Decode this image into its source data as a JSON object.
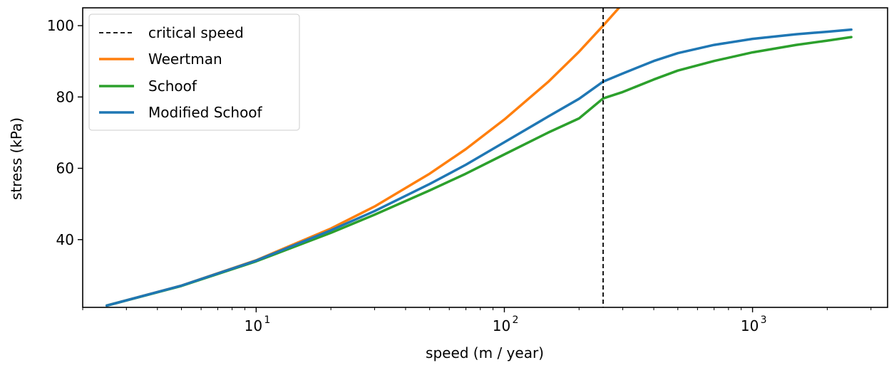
{
  "chart_data": {
    "type": "line",
    "title": "",
    "xlabel": "speed (m / year)",
    "ylabel": "stress (kPa)",
    "x_scale": "log",
    "xlim": [
      2,
      3500
    ],
    "ylim": [
      21,
      105
    ],
    "x_ticks": [
      {
        "value": 10,
        "base": "10",
        "exp": "1"
      },
      {
        "value": 100,
        "base": "10",
        "exp": "2"
      },
      {
        "value": 1000,
        "base": "10",
        "exp": "3"
      }
    ],
    "y_ticks": [
      {
        "value": 40,
        "label": "40"
      },
      {
        "value": 60,
        "label": "60"
      },
      {
        "value": 80,
        "label": "80"
      },
      {
        "value": 100,
        "label": "100"
      }
    ],
    "grid": false,
    "legend_position": "upper left",
    "critical_speed": {
      "name": "critical speed",
      "x": 250,
      "color": "#000000",
      "style": "dashed"
    },
    "series": [
      {
        "name": "Weertman",
        "color": "#ff7f0e",
        "x": [
          2.5,
          5,
          10,
          20,
          30,
          50,
          70,
          100,
          150,
          200,
          250,
          300
        ],
        "y": [
          21.5,
          27.1,
          34.2,
          43.1,
          49.3,
          58.5,
          65.4,
          73.7,
          84.2,
          92.7,
          100.0,
          106.2
        ]
      },
      {
        "name": "Schoof",
        "color": "#2ca02c",
        "x": [
          2.5,
          5,
          10,
          20,
          30,
          50,
          70,
          100,
          150,
          200,
          250,
          300,
          400,
          500,
          700,
          1000,
          1500,
          2000,
          2500
        ],
        "y": [
          21.5,
          27.0,
          33.9,
          41.9,
          47.0,
          53.8,
          58.5,
          63.9,
          70.0,
          74.0,
          79.6,
          81.4,
          84.9,
          87.4,
          90.1,
          92.5,
          94.6,
          95.8,
          96.8
        ]
      },
      {
        "name": "Modified Schoof",
        "color": "#1f77b4",
        "x": [
          2.5,
          5,
          10,
          20,
          30,
          50,
          70,
          100,
          150,
          200,
          250,
          300,
          400,
          500,
          700,
          1000,
          1500,
          2000,
          2500
        ],
        "y": [
          21.5,
          27.1,
          34.1,
          42.6,
          48.0,
          55.6,
          61.0,
          67.3,
          74.5,
          79.5,
          84.3,
          86.6,
          90.1,
          92.3,
          94.6,
          96.3,
          97.6,
          98.3,
          98.9
        ]
      }
    ]
  }
}
